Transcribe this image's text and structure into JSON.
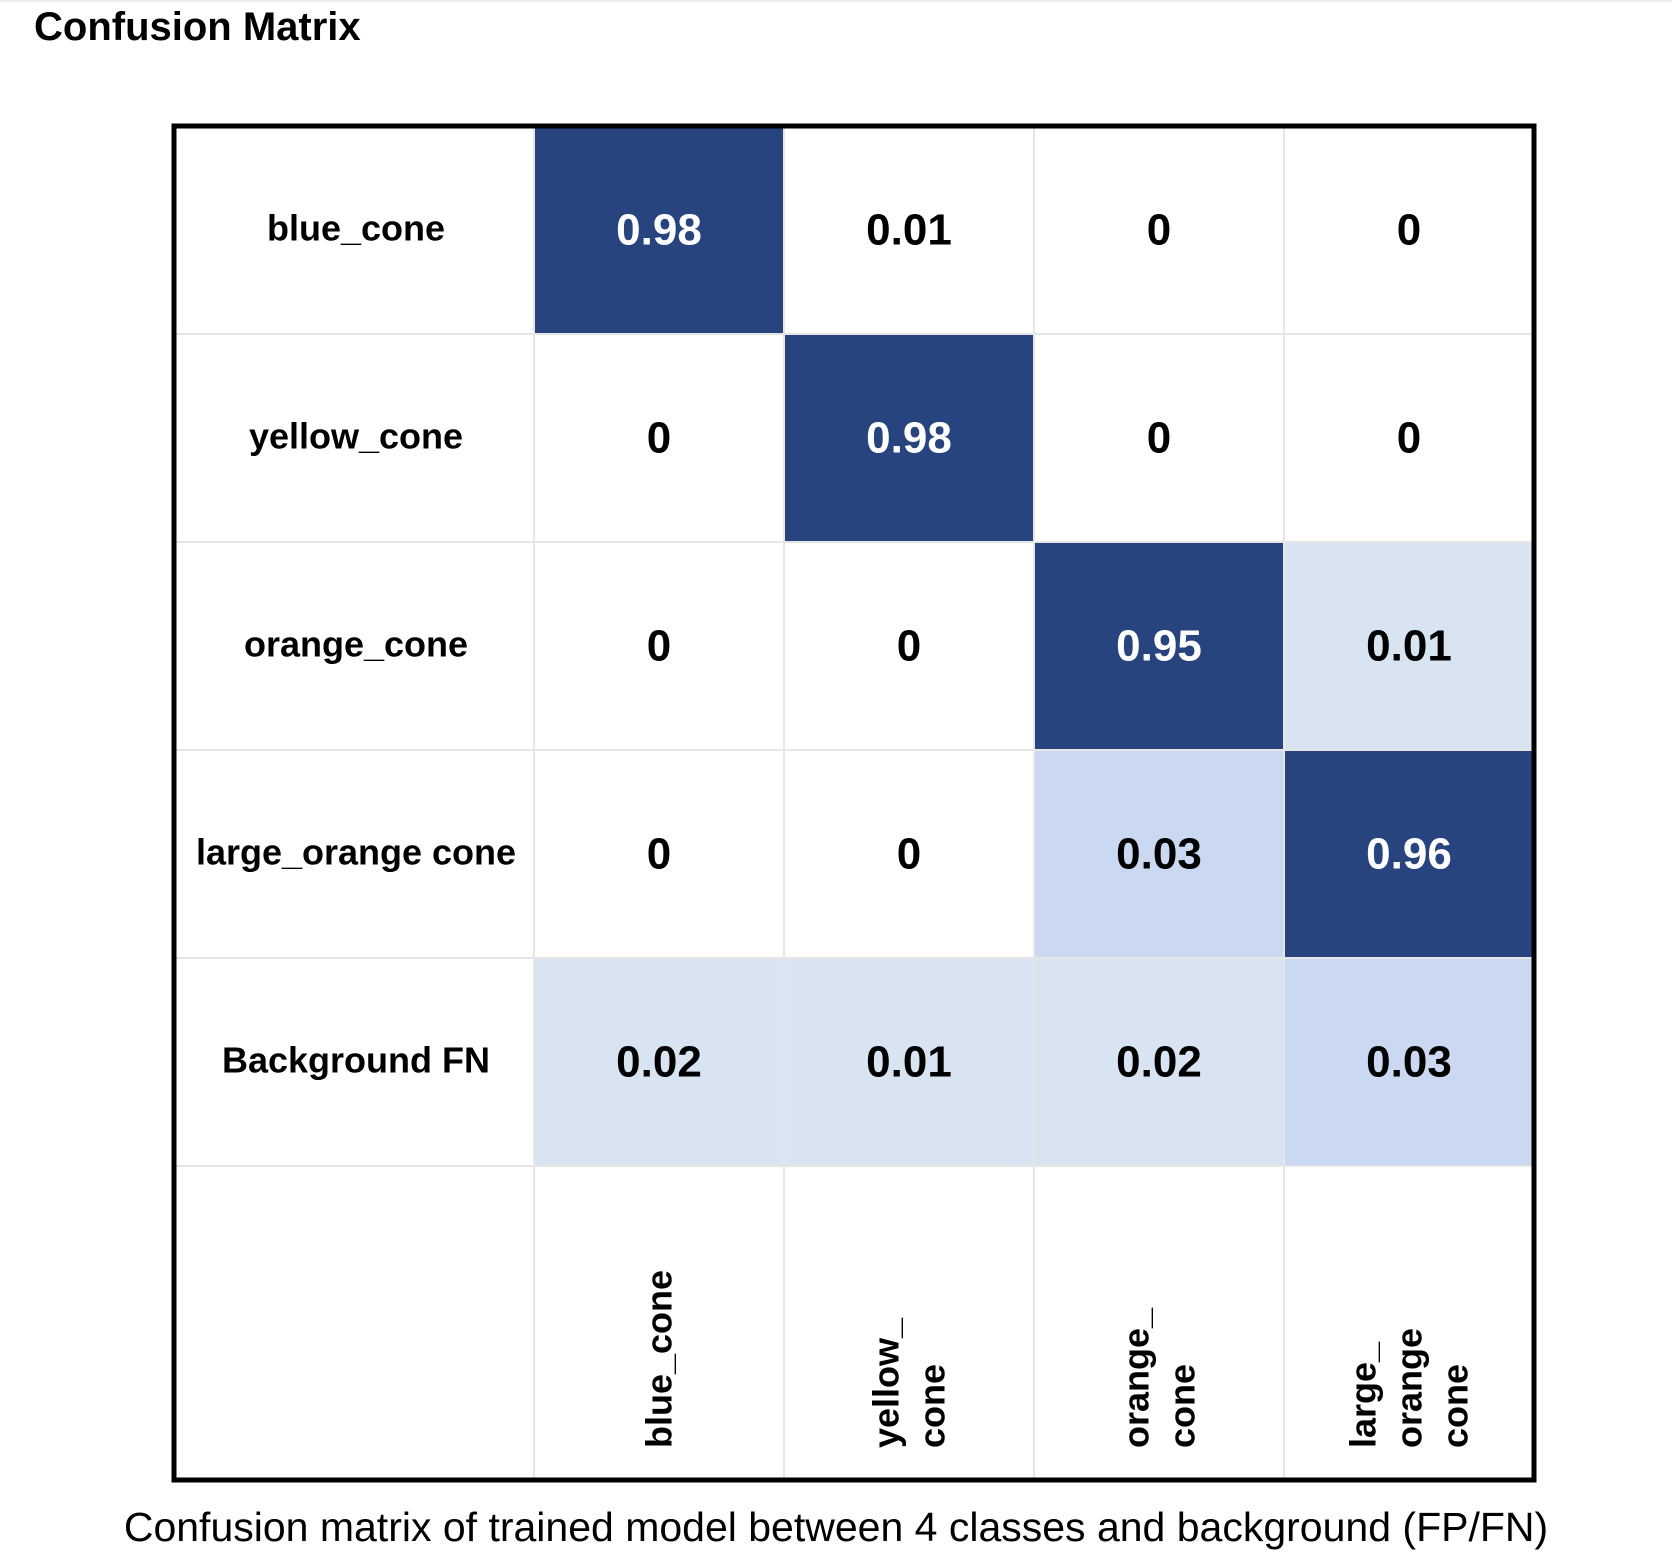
{
  "title": "Confusion Matrix",
  "caption": "Confusion matrix of trained model between 4 classes and background (FP/FN)",
  "colors": {
    "high": "#27447f",
    "mid": "#cad9f1",
    "low": "#d8e4f2",
    "grid": "#e6e6e6",
    "border": "#000000",
    "text_dark": "#000000",
    "text_light": "#ffffff"
  },
  "chart_data": {
    "type": "heatmap",
    "title": "Confusion Matrix",
    "rows": [
      "blue_cone",
      "yellow_cone",
      "orange_cone",
      "large_orange cone",
      "Background FN"
    ],
    "columns": [
      [
        "blue_cone"
      ],
      [
        "yellow_",
        "cone"
      ],
      [
        "orange_",
        "cone"
      ],
      [
        "large_",
        "orange",
        "cone"
      ]
    ],
    "values": [
      [
        0.98,
        0.01,
        0,
        0
      ],
      [
        0,
        0.98,
        0,
        0
      ],
      [
        0,
        0,
        0.95,
        0.01
      ],
      [
        0,
        0,
        0.03,
        0.96
      ],
      [
        0.02,
        0.01,
        0.02,
        0.03
      ]
    ],
    "value_labels": [
      [
        "0.98",
        "0.01",
        "0",
        "0"
      ],
      [
        "0",
        "0.98",
        "0",
        "0"
      ],
      [
        "0",
        "0",
        "0.95",
        "0.01"
      ],
      [
        "0",
        "0",
        "0.03",
        "0.96"
      ],
      [
        "0.02",
        "0.01",
        "0.02",
        "0.03"
      ]
    ],
    "cell_shading": [
      [
        "high",
        "none",
        "none",
        "none"
      ],
      [
        "none",
        "high",
        "none",
        "none"
      ],
      [
        "none",
        "none",
        "high",
        "low"
      ],
      [
        "none",
        "none",
        "mid",
        "high"
      ],
      [
        "low",
        "low",
        "low",
        "mid"
      ]
    ],
    "grid": true,
    "legend": "none"
  }
}
